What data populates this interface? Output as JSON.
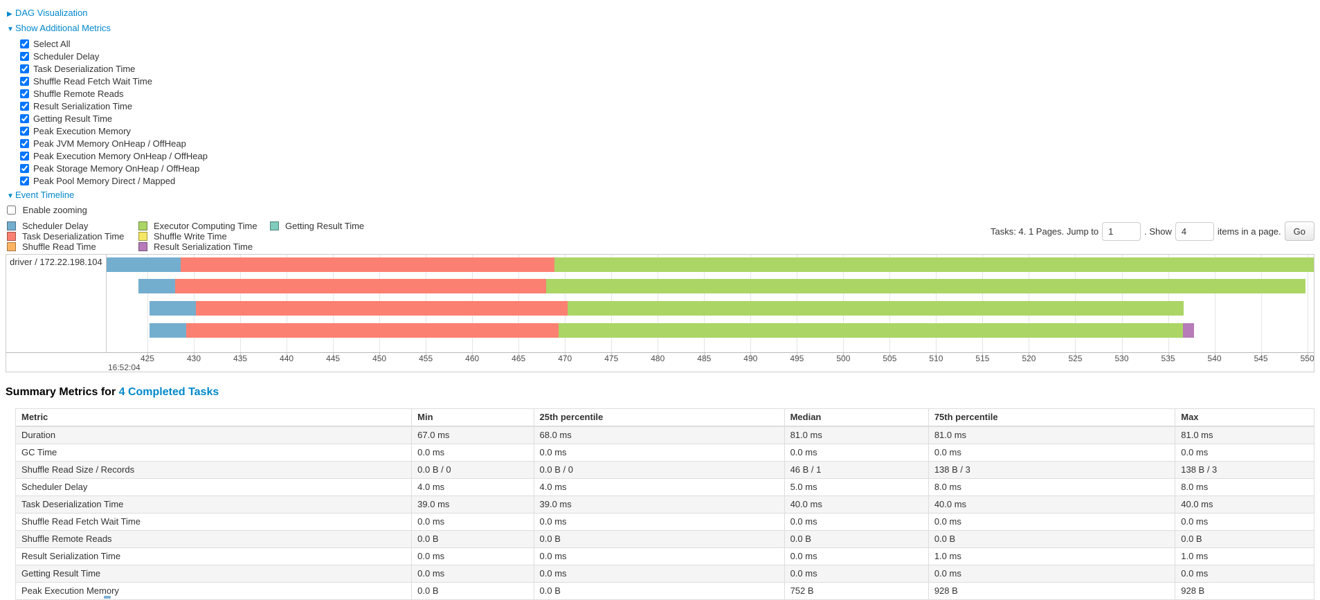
{
  "controls": {
    "dag": {
      "arrow": "▶",
      "label": "DAG Visualization"
    },
    "metrics": {
      "arrow": "▼",
      "label": "Show Additional Metrics"
    },
    "metric_checkboxes": [
      {
        "label": "Select All",
        "checked": true
      },
      {
        "label": "Scheduler Delay",
        "checked": true
      },
      {
        "label": "Task Deserialization Time",
        "checked": true
      },
      {
        "label": "Shuffle Read Fetch Wait Time",
        "checked": true
      },
      {
        "label": "Shuffle Remote Reads",
        "checked": true
      },
      {
        "label": "Result Serialization Time",
        "checked": true
      },
      {
        "label": "Getting Result Time",
        "checked": true
      },
      {
        "label": "Peak Execution Memory",
        "checked": true
      },
      {
        "label": "Peak JVM Memory OnHeap / OffHeap",
        "checked": true
      },
      {
        "label": "Peak Execution Memory OnHeap / OffHeap",
        "checked": true
      },
      {
        "label": "Peak Storage Memory OnHeap / OffHeap",
        "checked": true
      },
      {
        "label": "Peak Pool Memory Direct / Mapped",
        "checked": true
      }
    ],
    "event_timeline": {
      "arrow": "▼",
      "label": "Event Timeline"
    },
    "enable_zooming": {
      "label": "Enable zooming",
      "checked": false
    }
  },
  "legend": {
    "columns": [
      [
        {
          "label": "Scheduler Delay",
          "color": "#74AECF"
        },
        {
          "label": "Task Deserialization Time",
          "color": "#FB8072"
        },
        {
          "label": "Shuffle Read Time",
          "color": "#FDB462"
        }
      ],
      [
        {
          "label": "Executor Computing Time",
          "color": "#ABD565"
        },
        {
          "label": "Shuffle Write Time",
          "color": "#F5E663"
        },
        {
          "label": "Result Serialization Time",
          "color": "#B67BB8"
        }
      ],
      [
        {
          "label": "Getting Result Time",
          "color": "#7FCBBE"
        }
      ]
    ]
  },
  "pagination": {
    "prefix": "Tasks: 4. 1 Pages. Jump to",
    "jump_value": "1",
    "mid": ". Show",
    "show_value": "4",
    "suffix": "items in a page.",
    "go_label": "Go"
  },
  "chart_data": {
    "type": "timeline",
    "title": "Event Timeline",
    "group_label": "driver / 172.22.198.104",
    "x_axis": {
      "major_label": "16:52:04",
      "unit": "milliseconds within 16:52:04",
      "ticks_from": 425,
      "ticks_to": 550,
      "tick_step": 5,
      "domain": [
        420.6,
        550.7
      ]
    },
    "segment_colors": {
      "scheduler_delay": "#74AECF",
      "task_deserialization": "#FB8072",
      "shuffle_read": "#FDB462",
      "executor_computing": "#ABD565",
      "shuffle_write": "#F5E663",
      "result_serialization": "#B67BB8",
      "getting_result": "#7FCBBE"
    },
    "tasks": [
      {
        "start": 420.6,
        "segments": [
          {
            "type": "scheduler_delay",
            "end": 428.6
          },
          {
            "type": "task_deserialization",
            "end": 468.9
          },
          {
            "type": "executor_computing",
            "end": 551.5
          }
        ]
      },
      {
        "start": 424.0,
        "segments": [
          {
            "type": "scheduler_delay",
            "end": 428.0
          },
          {
            "type": "task_deserialization",
            "end": 468.0
          },
          {
            "type": "executor_computing",
            "end": 549.8
          }
        ]
      },
      {
        "start": 425.2,
        "segments": [
          {
            "type": "scheduler_delay",
            "end": 430.2
          },
          {
            "type": "task_deserialization",
            "end": 470.3
          },
          {
            "type": "executor_computing",
            "end": 536.7
          }
        ]
      },
      {
        "start": 425.2,
        "segments": [
          {
            "type": "scheduler_delay",
            "end": 429.2
          },
          {
            "type": "task_deserialization",
            "end": 469.3
          },
          {
            "type": "executor_computing",
            "end": 536.6
          },
          {
            "type": "result_serialization",
            "end": 537.8
          }
        ]
      }
    ]
  },
  "summary": {
    "heading_prefix": "Summary Metrics for ",
    "heading_link": "4 Completed Tasks",
    "columns": [
      "Metric",
      "Min",
      "25th percentile",
      "Median",
      "75th percentile",
      "Max"
    ],
    "col_widths": [
      "30.5%",
      "9.4%",
      "19.3%",
      "11.1%",
      "19.0%",
      "10.7%"
    ],
    "rows": [
      [
        "Duration",
        "67.0 ms",
        "68.0 ms",
        "81.0 ms",
        "81.0 ms",
        "81.0 ms"
      ],
      [
        "GC Time",
        "0.0 ms",
        "0.0 ms",
        "0.0 ms",
        "0.0 ms",
        "0.0 ms"
      ],
      [
        "Shuffle Read Size / Records",
        "0.0 B / 0",
        "0.0 B / 0",
        "46 B / 1",
        "138 B / 3",
        "138 B / 3"
      ],
      [
        "Scheduler Delay",
        "4.0 ms",
        "4.0 ms",
        "5.0 ms",
        "8.0 ms",
        "8.0 ms"
      ],
      [
        "Task Deserialization Time",
        "39.0 ms",
        "39.0 ms",
        "40.0 ms",
        "40.0 ms",
        "40.0 ms"
      ],
      [
        "Shuffle Read Fetch Wait Time",
        "0.0 ms",
        "0.0 ms",
        "0.0 ms",
        "0.0 ms",
        "0.0 ms"
      ],
      [
        "Shuffle Remote Reads",
        "0.0 B",
        "0.0 B",
        "0.0 B",
        "0.0 B",
        "0.0 B"
      ],
      [
        "Result Serialization Time",
        "0.0 ms",
        "0.0 ms",
        "0.0 ms",
        "1.0 ms",
        "1.0 ms"
      ],
      [
        "Getting Result Time",
        "0.0 ms",
        "0.0 ms",
        "0.0 ms",
        "0.0 ms",
        "0.0 ms"
      ],
      [
        "Peak Execution Memory",
        "0.0 B",
        "0.0 B",
        "752 B",
        "928 B",
        "928 B"
      ]
    ]
  }
}
